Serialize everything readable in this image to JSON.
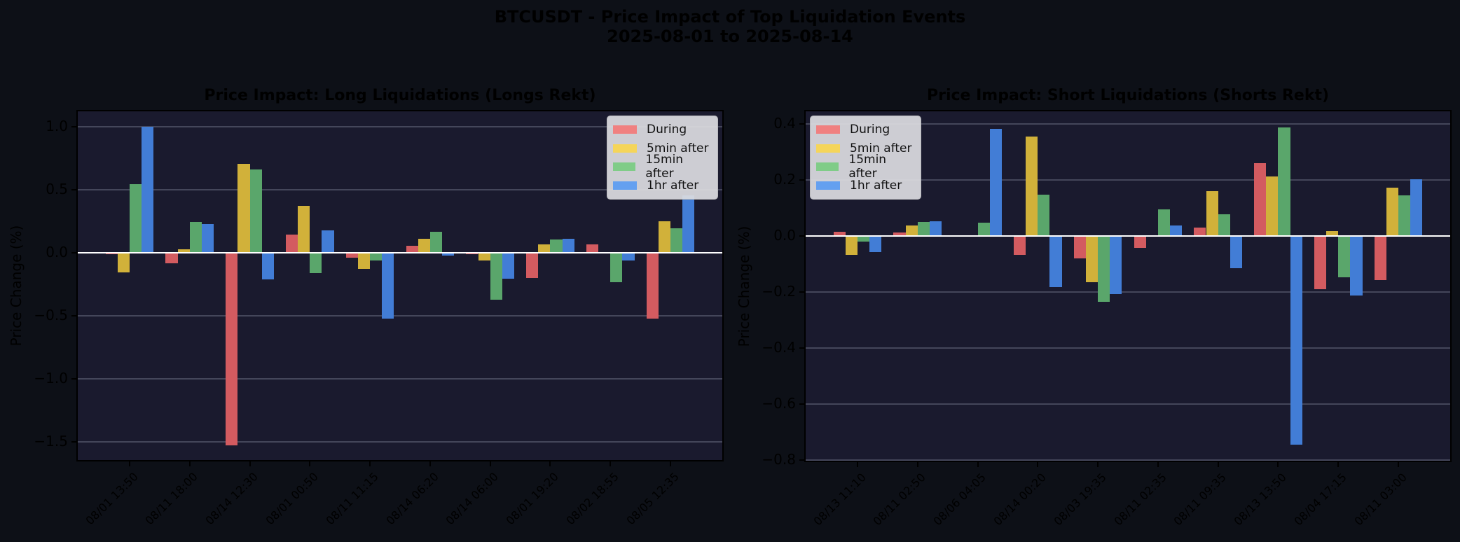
{
  "figure": {
    "title_line1": "BTCUSDT - Price Impact of Top Liquidation Events",
    "title_line2": "2025-08-01 to 2025-08-14",
    "background": "#0d1017",
    "axes_background": "#1a1a2e"
  },
  "legend": {
    "items": [
      {
        "label": "During",
        "color": "#f08080",
        "bar_color": "#d35b60"
      },
      {
        "label": "5min after",
        "color": "#f5d55a",
        "bar_color": "#d1b13a"
      },
      {
        "label": "15min after",
        "color": "#80cc88",
        "bar_color": "#5aa66b"
      },
      {
        "label": "1hr after",
        "color": "#64a0f0",
        "bar_color": "#427dd6"
      }
    ]
  },
  "chart_data": [
    {
      "type": "bar",
      "title": "Price Impact: Long Liquidations (Longs Rekt)",
      "xlabel": "",
      "ylabel": "Price Change (%)",
      "ylim": [
        -1.656,
        1.133
      ],
      "yticks": [
        -1.5,
        -1.0,
        -0.5,
        0.0,
        0.5,
        1.0
      ],
      "ytick_labels": [
        "−1.5",
        "−1.0",
        "−0.5",
        "0.0",
        "0.5",
        "1.0"
      ],
      "grid": true,
      "legend_position": "upper right",
      "categories": [
        "08/01 13:50",
        "08/11 18:00",
        "08/14 12:30",
        "08/01 00:50",
        "08/11 11:15",
        "08/14 06:20",
        "08/14 06:00",
        "08/01 19:20",
        "08/02 18:55",
        "08/05 12:35"
      ],
      "series": [
        {
          "name": "During",
          "values": [
            -0.01,
            -0.083,
            -1.53,
            0.144,
            -0.037,
            0.056,
            -0.009,
            -0.198,
            0.067,
            -0.52
          ]
        },
        {
          "name": "5min after",
          "values": [
            -0.155,
            0.028,
            0.705,
            0.372,
            -0.126,
            0.111,
            -0.059,
            0.067,
            0.005,
            0.25
          ]
        },
        {
          "name": "15min after",
          "values": [
            0.545,
            0.244,
            0.661,
            -0.161,
            -0.059,
            0.167,
            -0.37,
            0.106,
            -0.231,
            0.194
          ]
        },
        {
          "name": "1hr after",
          "values": [
            1.0,
            0.228,
            -0.211,
            0.178,
            -0.52,
            -0.02,
            -0.204,
            0.111,
            -0.059,
            0.456
          ]
        }
      ]
    },
    {
      "type": "bar",
      "title": "Price Impact: Short Liquidations (Shorts Rekt)",
      "xlabel": "",
      "ylabel": "Price Change (%)",
      "ylim": [
        -0.808,
        0.45
      ],
      "yticks": [
        -0.8,
        -0.6,
        -0.4,
        -0.2,
        0.0,
        0.2,
        0.4
      ],
      "ytick_labels": [
        "−0.8",
        "−0.6",
        "−0.4",
        "−0.2",
        "0.0",
        "0.2",
        "0.4"
      ],
      "grid": true,
      "legend_position": "upper left",
      "categories": [
        "08/13 11:10",
        "08/11 02:50",
        "08/06 04:05",
        "08/14 00:20",
        "08/03 19:35",
        "08/11 02:35",
        "08/11 09:35",
        "08/13 13:50",
        "08/04 17:15",
        "08/11 03:00"
      ],
      "series": [
        {
          "name": "During",
          "values": [
            0.014,
            0.012,
            0.0,
            -0.067,
            -0.08,
            -0.042,
            0.03,
            0.259,
            -0.191,
            -0.158
          ]
        },
        {
          "name": "5min after",
          "values": [
            -0.067,
            0.037,
            0.0,
            0.354,
            -0.165,
            0.0,
            0.159,
            0.212,
            0.017,
            0.172
          ]
        },
        {
          "name": "15min after",
          "values": [
            -0.019,
            0.049,
            0.047,
            0.147,
            -0.235,
            0.095,
            0.077,
            0.388,
            -0.149,
            0.144
          ]
        },
        {
          "name": "1hr after",
          "values": [
            -0.057,
            0.052,
            0.382,
            -0.184,
            -0.207,
            0.037,
            -0.114,
            -0.746,
            -0.212,
            0.202
          ]
        }
      ]
    }
  ]
}
